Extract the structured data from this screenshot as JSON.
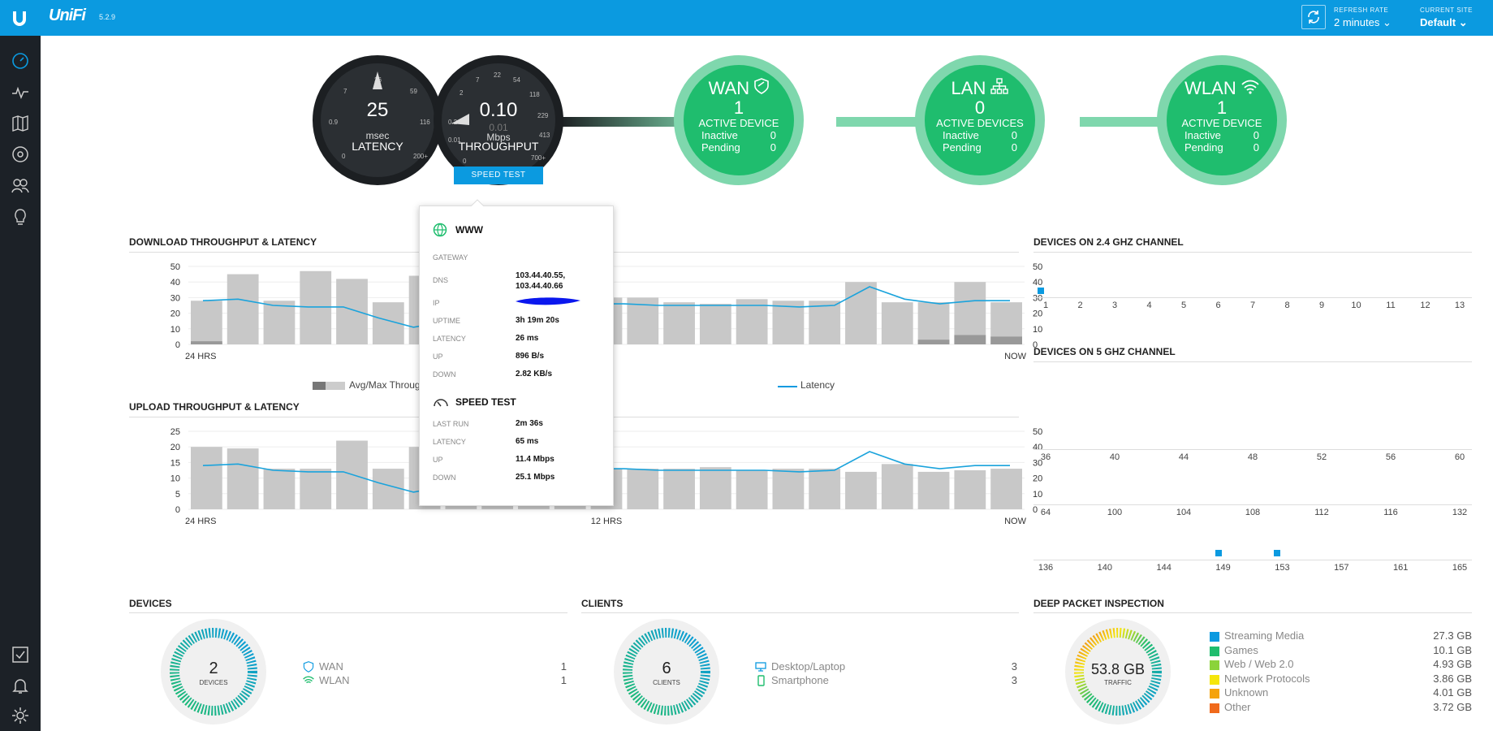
{
  "topbar": {
    "brand": "UniFi",
    "version": "5.2.9",
    "refresh_rate_label": "REFRESH RATE",
    "refresh_rate_value": "2 minutes",
    "current_site_label": "CURRENT SITE",
    "current_site_value": "Default"
  },
  "sidebar": {
    "items": [
      "dashboard-icon",
      "statistics-icon",
      "map-icon",
      "devices-icon",
      "clients-icon",
      "insights-icon"
    ],
    "bottom": [
      "alerts-check-icon",
      "notifications-bell-icon",
      "settings-gear-icon"
    ]
  },
  "latency_dial": {
    "value": "25",
    "unit": "msec",
    "label": "LATENCY",
    "ticks": [
      "0",
      "0.9",
      "7",
      "26",
      "59",
      "116",
      "200+"
    ]
  },
  "throughput_dial": {
    "value": "0.10",
    "secondary": "0.01",
    "unit": "Mbps",
    "label": "THROUGHPUT",
    "ticks": [
      "0",
      "0.01",
      "0.2",
      "2",
      "7",
      "22",
      "54",
      "118",
      "229",
      "413",
      "700+"
    ],
    "speed_test_button": "SPEED TEST"
  },
  "wan": {
    "title": "WAN",
    "count": "1",
    "sub": "ACTIVE DEVICE",
    "inactive_label": "Inactive",
    "inactive": "0",
    "pending_label": "Pending",
    "pending": "0"
  },
  "lan": {
    "title": "LAN",
    "count": "0",
    "sub": "ACTIVE DEVICES",
    "inactive_label": "Inactive",
    "inactive": "0",
    "pending_label": "Pending",
    "pending": "0"
  },
  "wlan": {
    "title": "WLAN",
    "count": "1",
    "sub": "ACTIVE DEVICE",
    "inactive_label": "Inactive",
    "inactive": "0",
    "pending_label": "Pending",
    "pending": "0"
  },
  "popover": {
    "title": "WWW",
    "gateway_label": "GATEWAY",
    "dns_label": "DNS",
    "dns_1": "103.44.40.55,",
    "dns_2": "103.44.40.66",
    "ip_label": "IP",
    "uptime_label": "UPTIME",
    "uptime": "3h 19m 20s",
    "latency_label": "LATENCY",
    "latency": "26 ms",
    "up_label": "UP",
    "up": "896 B/s",
    "down_label": "DOWN",
    "down": "2.82 KB/s",
    "speed_title": "SPEED TEST",
    "last_run_label": "LAST RUN",
    "last_run": "2m 36s",
    "st_latency_label": "LATENCY",
    "st_latency": "65 ms",
    "st_up_label": "UP",
    "st_up": "11.4 Mbps",
    "st_down_label": "DOWN",
    "st_down": "25.1 Mbps"
  },
  "download_title": "DOWNLOAD THROUGHPUT & LATENCY",
  "upload_title": "UPLOAD THROUGHPUT & LATENCY",
  "legend_throughput": "Avg/Max Throug",
  "legend_latency": "Latency",
  "chart_data": [
    {
      "type": "bar",
      "title": "DOWNLOAD THROUGHPUT & LATENCY",
      "ylim": [
        0,
        50
      ],
      "y2lim": [
        0,
        50
      ],
      "y_ticks": [
        "50",
        "40",
        "30",
        "20",
        "10",
        "0"
      ],
      "x_labels": [
        "24 HRS",
        "",
        "NOW"
      ],
      "max_values": [
        28,
        45,
        28,
        47,
        42,
        27,
        44,
        48,
        30,
        30,
        30,
        30,
        30,
        27,
        26,
        29,
        28,
        28,
        40,
        27,
        27,
        40,
        27
      ],
      "avg_values": [
        2,
        0,
        0,
        0,
        0,
        0,
        0,
        0,
        0,
        0,
        0,
        0,
        0,
        0,
        0,
        0,
        0,
        0,
        0,
        0,
        3,
        6,
        5
      ],
      "latency": [
        28,
        29,
        25,
        24,
        24,
        17,
        11,
        15,
        26,
        26,
        26,
        26,
        26,
        25,
        25,
        25,
        25,
        24,
        25,
        37,
        29,
        26,
        28,
        28
      ],
      "series": [
        {
          "name": "Avg/Max Throug"
        },
        {
          "name": "Latency"
        }
      ]
    },
    {
      "type": "bar",
      "title": "UPLOAD THROUGHPUT & LATENCY",
      "ylim": [
        0,
        25
      ],
      "y2lim": [
        0,
        50
      ],
      "y_ticks": [
        "25",
        "20",
        "15",
        "10",
        "5",
        "0"
      ],
      "y2_ticks": [
        "50",
        "40",
        "30",
        "20",
        "10",
        "0"
      ],
      "x_labels": [
        "24 HRS",
        "12 HRS",
        "NOW"
      ],
      "max_values": [
        20,
        19.5,
        13,
        13,
        22,
        13,
        20,
        13,
        13,
        13,
        13,
        13,
        13,
        13,
        13.5,
        12.5,
        13,
        13,
        12,
        14.5,
        12,
        12.5,
        13
      ],
      "latency": [
        28,
        29,
        25,
        24,
        24,
        17,
        11,
        15,
        26,
        26,
        26,
        26,
        26,
        25,
        25,
        25,
        25,
        24,
        25,
        37,
        29,
        26,
        28,
        28
      ]
    }
  ],
  "channels_24": {
    "title": "DEVICES ON 2.4 GHZ CHANNEL",
    "labels": [
      "1",
      "2",
      "3",
      "4",
      "5",
      "6",
      "7",
      "8",
      "9",
      "10",
      "11",
      "12",
      "13"
    ],
    "devices_on": [
      "1"
    ]
  },
  "channels_5": {
    "title": "DEVICES ON 5 GHZ CHANNEL",
    "row1": [
      "36",
      "40",
      "44",
      "48",
      "52",
      "56",
      "60"
    ],
    "row2": [
      "64",
      "100",
      "104",
      "108",
      "112",
      "116",
      "132"
    ],
    "row3": [
      "136",
      "140",
      "144",
      "149",
      "153",
      "157",
      "161",
      "165"
    ],
    "devices_on": [
      "149",
      "153"
    ]
  },
  "devices": {
    "title": "DEVICES",
    "count": "2",
    "label": "DEVICES",
    "rows": [
      {
        "name": "WAN",
        "value": "1"
      },
      {
        "name": "WLAN",
        "value": "1"
      }
    ]
  },
  "clients": {
    "title": "CLIENTS",
    "count": "6",
    "label": "CLIENTS",
    "rows": [
      {
        "name": "Desktop/Laptop",
        "value": "3"
      },
      {
        "name": "Smartphone",
        "value": "3"
      }
    ]
  },
  "dpi": {
    "title": "DEEP PACKET INSPECTION",
    "total": "53.8 GB",
    "label": "TRAFFIC",
    "rows": [
      {
        "name": "Streaming Media",
        "value": "27.3 GB",
        "color": "#0b9ae0"
      },
      {
        "name": "Games",
        "value": "10.1 GB",
        "color": "#1fbd6e"
      },
      {
        "name": "Web / Web 2.0",
        "value": "4.93 GB",
        "color": "#8bd33a"
      },
      {
        "name": "Network Protocols",
        "value": "3.86 GB",
        "color": "#f5e60c"
      },
      {
        "name": "Unknown",
        "value": "4.01 GB",
        "color": "#f5a30c"
      },
      {
        "name": "Other",
        "value": "3.72 GB",
        "color": "#f06a1c"
      }
    ]
  }
}
